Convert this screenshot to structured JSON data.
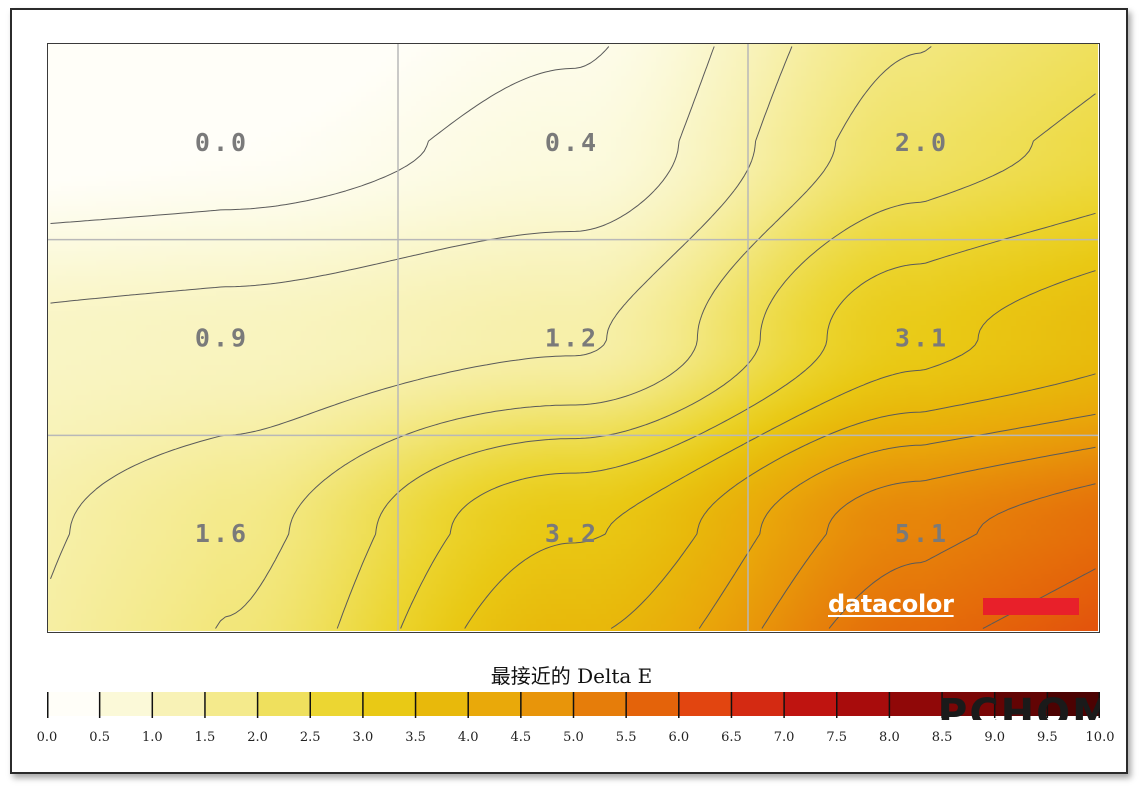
{
  "chart_data": {
    "type": "heatmap",
    "title": "",
    "rows": 3,
    "cols": 3,
    "cells": [
      [
        0.0,
        0.4,
        2.0
      ],
      [
        0.9,
        1.2,
        3.1
      ],
      [
        1.6,
        3.2,
        5.1
      ]
    ],
    "cell_labels": [
      [
        "0.0",
        "0.4",
        "2.0"
      ],
      [
        "0.9",
        "1.2",
        "3.1"
      ],
      [
        "1.6",
        "3.2",
        "5.1"
      ]
    ],
    "color_scale": {
      "title": "最接近的 Delta E",
      "min": 0.0,
      "max": 10.0,
      "step": 0.5,
      "tick_labels": [
        "0.0",
        "0.5",
        "1.0",
        "1.5",
        "2.0",
        "2.5",
        "3.0",
        "3.5",
        "4.0",
        "4.5",
        "5.0",
        "5.5",
        "6.0",
        "6.5",
        "7.0",
        "7.5",
        "8.0",
        "8.5",
        "9.0",
        "9.5",
        "10.0"
      ],
      "colors": [
        "#fffef8",
        "#fbf9d8",
        "#f8f2b6",
        "#f4ea8c",
        "#efe05d",
        "#ecd632",
        "#e9c915",
        "#e8b90b",
        "#e9a90a",
        "#e8950a",
        "#e67d0a",
        "#e4630a",
        "#e24510",
        "#d42a12",
        "#bf1410",
        "#a80c0c",
        "#900808",
        "#7a0606",
        "#620404",
        "#4c0202"
      ]
    },
    "grid": true,
    "contours": true,
    "colors": {
      "frame": "#2b2b2b",
      "grid": "#b8b8b8",
      "label": "#7a7a7a",
      "contour": "#5a5a5a"
    }
  },
  "branding": {
    "logo_text": "datacolor",
    "logo_bar_color": "#e8202a",
    "watermark_text": "PCHOME"
  }
}
